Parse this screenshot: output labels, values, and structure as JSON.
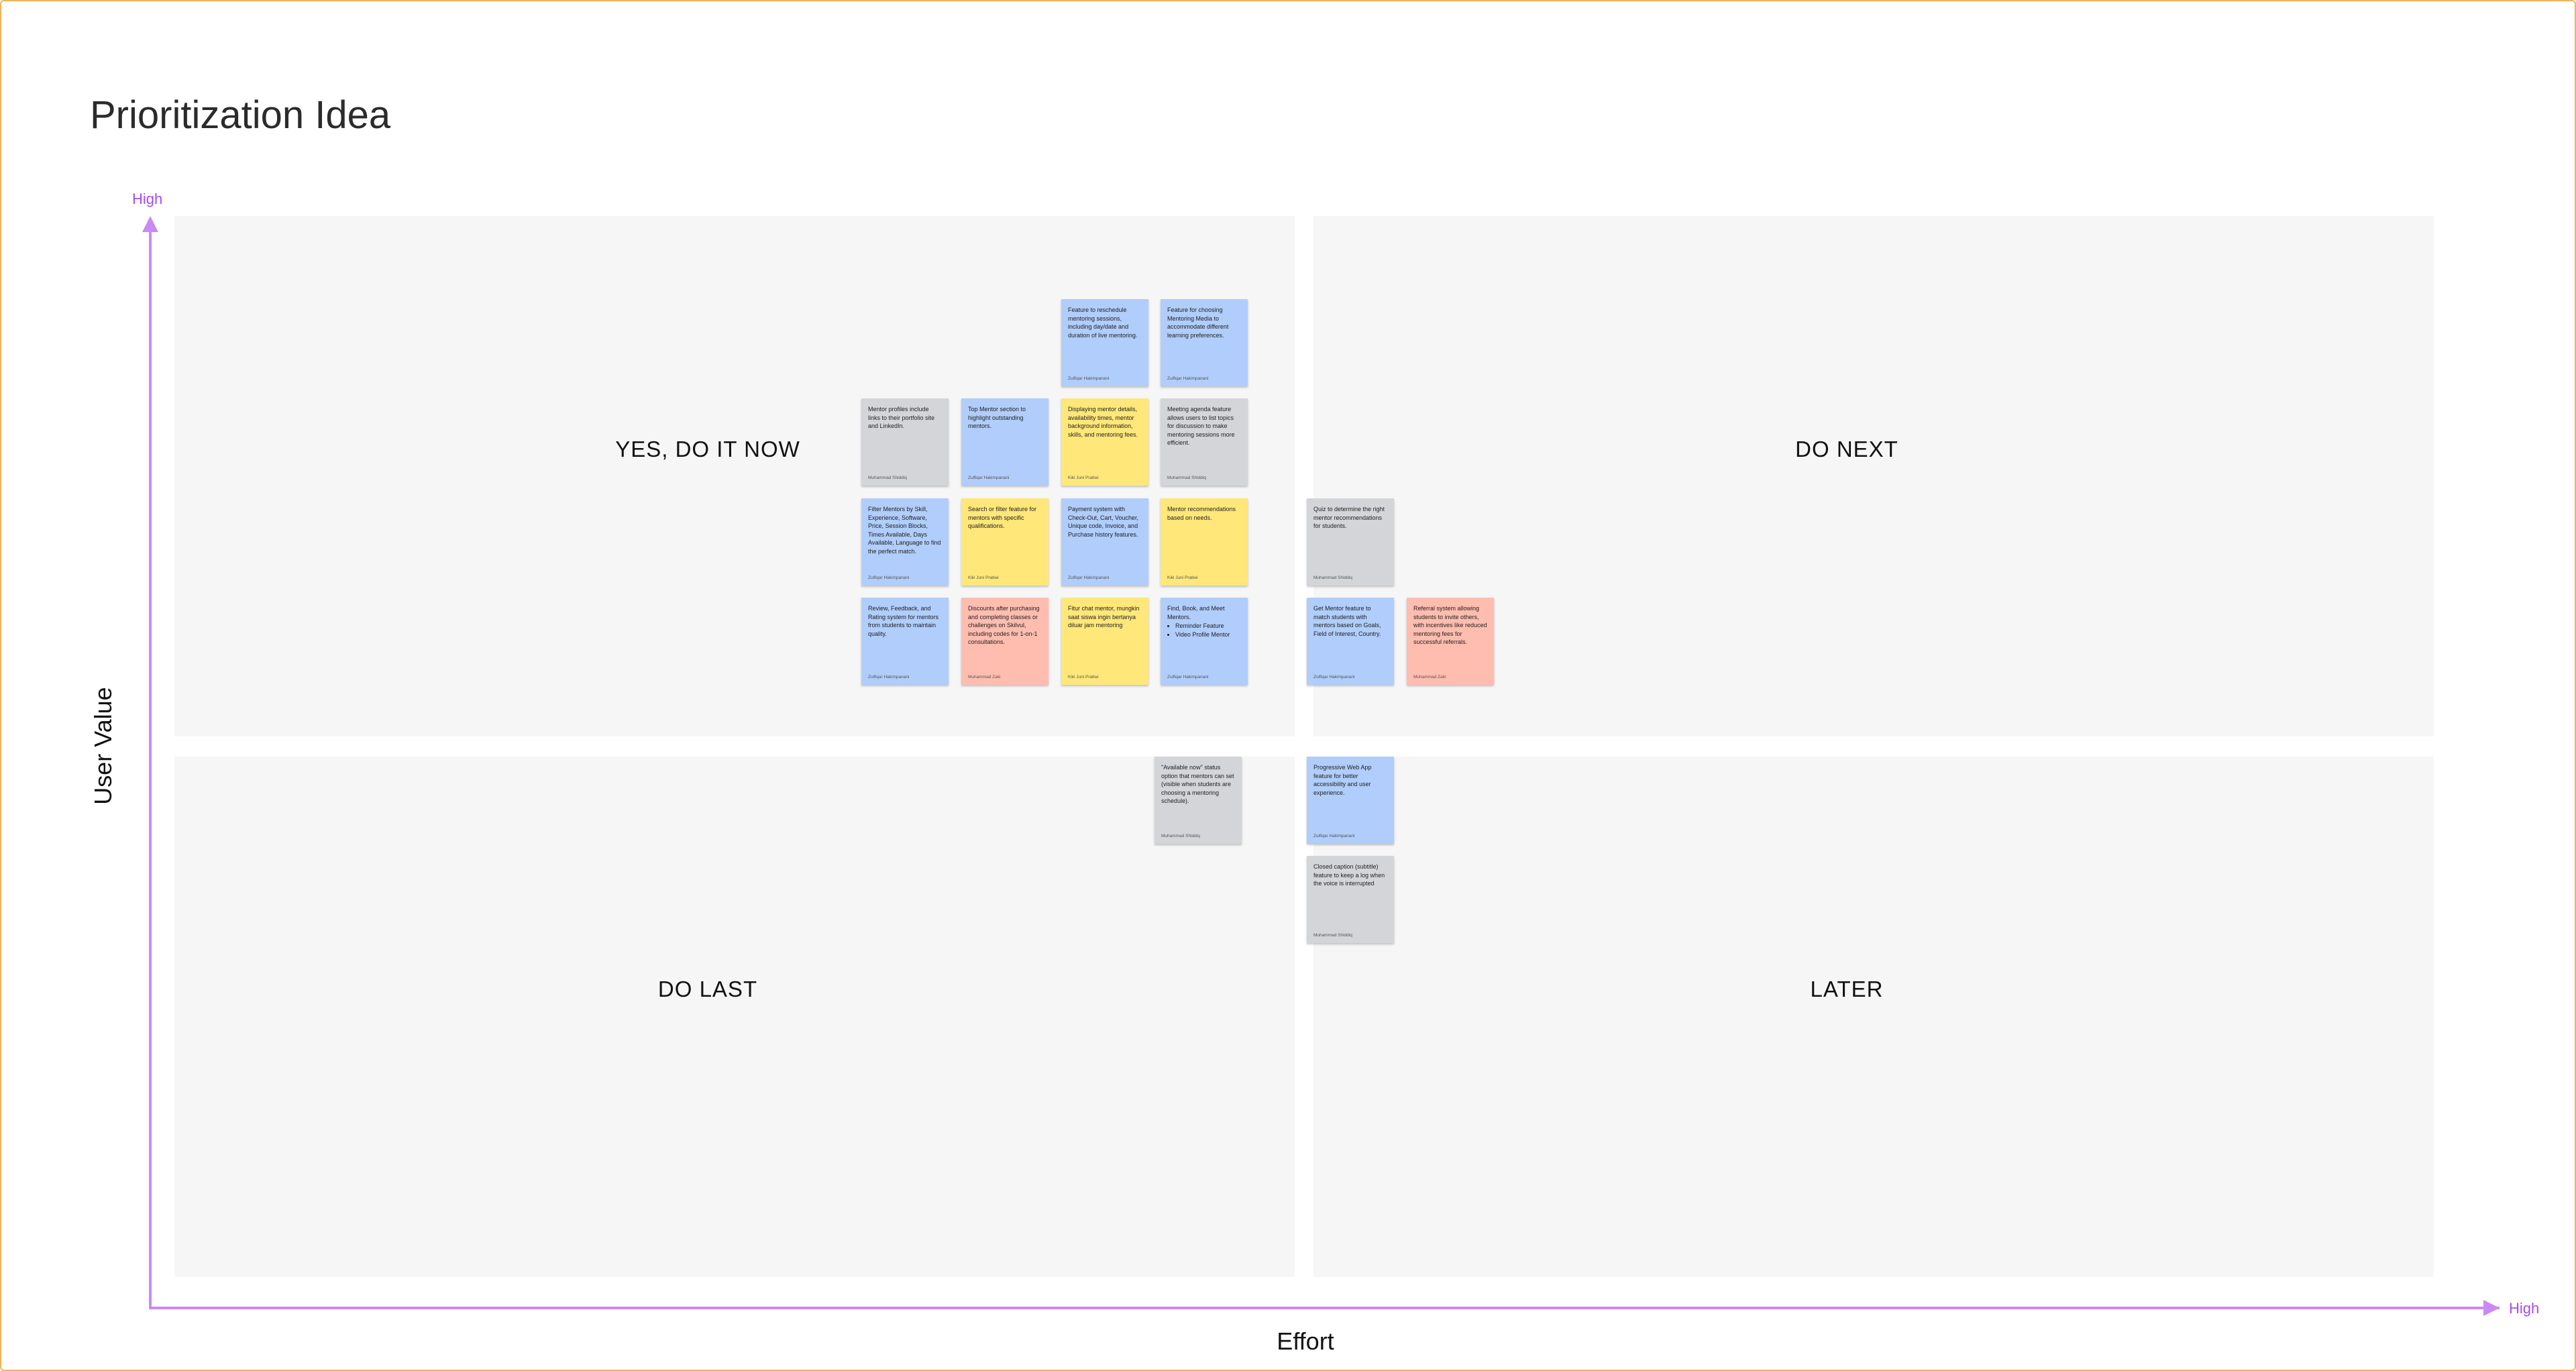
{
  "title": "Prioritization Idea",
  "quadrants": {
    "yes_do_it_now": "YES, DO IT NOW",
    "do_next": "DO NEXT",
    "do_last": "DO LAST",
    "later": "LATER"
  },
  "axes": {
    "y_label": "User Value",
    "y_high": "High",
    "x_label": "Effort",
    "x_high": "High",
    "color": "#c98af5"
  },
  "sticky_colors": {
    "blue": "#b0cdfb",
    "gray": "#d3d5d9",
    "yellow": "#ffe77a",
    "salmon": "#ffbdb0"
  },
  "notes": [
    {
      "text": "Feature to reschedule mentoring sessions, including day/date and duration of live mentoring.",
      "author": "Zulfiqar Hakimpanani",
      "color": "blue"
    },
    {
      "text": "Feature for choosing Mentoring Media to accommodate different learning preferences.",
      "author": "Zulfiqar Hakimpanani",
      "color": "blue"
    },
    {
      "text": "Mentor profiles include links to their portfolio site and LinkedIn.",
      "author": "Muhammad Shiddiq",
      "color": "gray"
    },
    {
      "text": "Top Mentor section to highlight outstanding mentors.",
      "author": "Zulfiqar Hakimpanani",
      "color": "blue"
    },
    {
      "text": "Displaying mentor details, availability times, mentor background information, skills, and mentoring fees.",
      "author": "Kiki Juni Pratiwi",
      "color": "yellow"
    },
    {
      "text": "Meeting agenda feature allows users to list topics for discussion to make mentoring sessions more efficient.",
      "author": "Muhammad Shiddiq",
      "color": "gray"
    },
    {
      "text": "Filter Mentors by Skill, Experience, Software, Price, Session Blocks, Times Available, Days Available, Language to find the perfect match.",
      "author": "Zulfiqar Hakimpanani",
      "color": "blue"
    },
    {
      "text": "Search or filter feature for mentors with specific qualifications.",
      "author": "Kiki Juni Pratiwi",
      "color": "yellow"
    },
    {
      "text": "Payment system with Check-Out, Cart, Voucher, Unique code, Invoice, and Purchase history features.",
      "author": "Zulfiqar Hakimpanani",
      "color": "blue"
    },
    {
      "text": "Mentor recommendations based on needs.",
      "author": "Kiki Juni Pratiwi",
      "color": "yellow"
    },
    {
      "text": "Review, Feedback, and Rating system for mentors from students to maintain quality.",
      "author": "Zulfiqar Hakimpanani",
      "color": "blue"
    },
    {
      "text": "Discounts after purchasing and completing classes or challenges on Skilvul, including codes for 1-on-1 consultations.",
      "author": "Muhammad Zaki",
      "color": "salmon"
    },
    {
      "text": "Fitur chat mentor, mungkin saat siswa ingin bertanya diluar jam mentoring",
      "author": "Kiki Juni Pratiwi",
      "color": "yellow"
    },
    {
      "text": "Find, Book, and Meet Mentors.",
      "bullets": [
        "Reminder Feature",
        "Video Profile Mentor"
      ],
      "author": "Zulfiqar Hakimpanani",
      "color": "blue"
    },
    {
      "text": "Quiz to determine the right mentor recommendations for students.",
      "author": "Muhammad Shiddiq",
      "color": "gray"
    },
    {
      "text": "Get Mentor feature to match students with mentors based on Goals, Field of Interest, Country.",
      "author": "Zulfiqar Hakimpanani",
      "color": "blue"
    },
    {
      "text": "Referral system allowing students to invite others, with incentives like reduced mentoring fees for successful referrals.",
      "author": "Muhammad Zaki",
      "color": "salmon"
    },
    {
      "text": "\"Available now\" status option that mentors can set (visible when students are choosing a mentoring schedule).",
      "author": "Muhammad Shiddiq",
      "color": "gray"
    },
    {
      "text": "Progressive Web App feature for better accessibility and user experience.",
      "author": "Zulfiqar Hakimpanani",
      "color": "blue"
    },
    {
      "text": "Closed caption (subtitle) feature to keep a log when the voice is interrupted",
      "author": "Muhammad Shiddiq",
      "color": "gray"
    }
  ]
}
